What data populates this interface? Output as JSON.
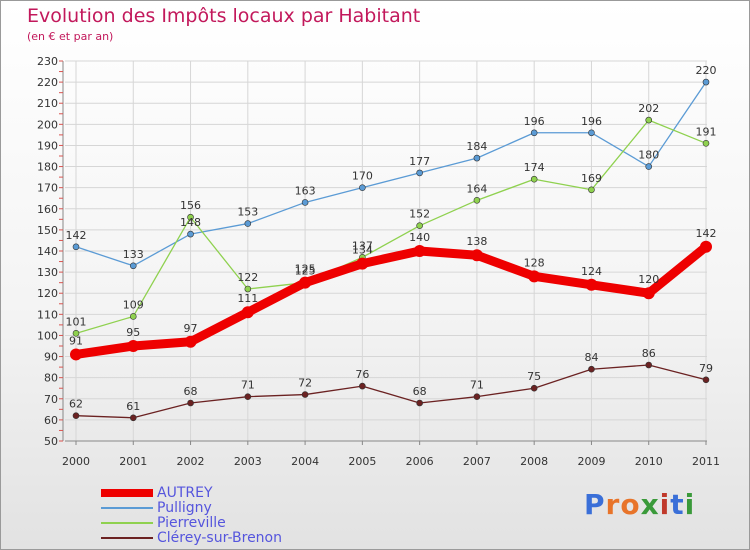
{
  "title": "Evolution des Impôts locaux par Habitant",
  "subtitle": "(en € et par an)",
  "logo": {
    "text": "Proxiti",
    "letter_colors": [
      "#3a6fd8",
      "#e8742a",
      "#e8742a",
      "#3a9a3a",
      "#c0392b",
      "#3a6fd8",
      "#3a9a3a"
    ]
  },
  "chart_data": {
    "type": "line",
    "title": "Evolution des Impôts locaux par Habitant",
    "subtitle": "(en € et par an)",
    "xlabel": "",
    "ylabel": "",
    "x": [
      "2000",
      "2001",
      "2002",
      "2003",
      "2004",
      "2005",
      "2006",
      "2007",
      "2008",
      "2009",
      "2010",
      "2011"
    ],
    "ylim": [
      50,
      230
    ],
    "yticks": [
      50,
      60,
      70,
      80,
      90,
      100,
      110,
      120,
      130,
      140,
      150,
      160,
      170,
      180,
      190,
      200,
      210,
      220,
      230
    ],
    "grid": true,
    "legend_position": "bottom-left",
    "series": [
      {
        "name": "AUTREY",
        "color": "#ee0000",
        "emphasis": true,
        "values": [
          91,
          95,
          97,
          111,
          125,
          134,
          140,
          138,
          128,
          124,
          120,
          142
        ]
      },
      {
        "name": "Pulligny",
        "color": "#5b9bd5",
        "emphasis": false,
        "values": [
          142,
          133,
          148,
          153,
          163,
          170,
          177,
          184,
          196,
          196,
          180,
          220
        ]
      },
      {
        "name": "Pierreville",
        "color": "#8fd14f",
        "emphasis": false,
        "values": [
          101,
          109,
          156,
          122,
          125,
          137,
          152,
          164,
          174,
          169,
          202,
          191
        ]
      },
      {
        "name": "Clérey-sur-Brenon",
        "color": "#6b2222",
        "emphasis": false,
        "values": [
          62,
          61,
          68,
          71,
          72,
          76,
          68,
          71,
          75,
          84,
          86,
          79
        ]
      }
    ]
  }
}
